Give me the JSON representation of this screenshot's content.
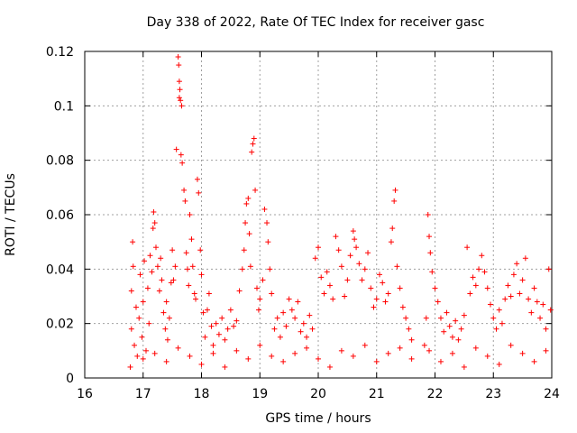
{
  "chart_data": {
    "type": "scatter",
    "title": "Day 338 of 2022, Rate Of TEC Index for receiver gasc",
    "xlabel": "GPS time / hours",
    "ylabel": "ROTI / TECUs",
    "xlim": [
      16,
      24
    ],
    "ylim": [
      0,
      0.12
    ],
    "xticks": [
      16,
      17,
      18,
      19,
      20,
      21,
      22,
      23,
      24
    ],
    "yticks": [
      0,
      0.02,
      0.04,
      0.06,
      0.08,
      0.1,
      0.12
    ],
    "xtick_labels": [
      "16",
      "17",
      "18",
      "19",
      "20",
      "21",
      "22",
      "23",
      "24"
    ],
    "ytick_labels": [
      "0",
      "0.02",
      "0.04",
      "0.06",
      "0.08",
      "0.1",
      "0.12"
    ],
    "grid": true,
    "marker": "+",
    "color": "#ff0000",
    "series": [
      {
        "name": "ROTI",
        "points": [
          [
            16.78,
            0.004
          ],
          [
            16.8,
            0.018
          ],
          [
            16.8,
            0.032
          ],
          [
            16.82,
            0.05
          ],
          [
            16.83,
            0.041
          ],
          [
            16.85,
            0.012
          ],
          [
            16.88,
            0.026
          ],
          [
            16.9,
            0.008
          ],
          [
            16.93,
            0.022
          ],
          [
            16.95,
            0.038
          ],
          [
            16.98,
            0.015
          ],
          [
            17.0,
            0.028
          ],
          [
            17.02,
            0.043
          ],
          [
            17.05,
            0.01
          ],
          [
            17.08,
            0.033
          ],
          [
            17.1,
            0.02
          ],
          [
            17.12,
            0.045
          ],
          [
            17.15,
            0.039
          ],
          [
            17.17,
            0.055
          ],
          [
            17.18,
            0.061
          ],
          [
            17.2,
            0.057
          ],
          [
            17.22,
            0.048
          ],
          [
            17.25,
            0.041
          ],
          [
            17.28,
            0.032
          ],
          [
            17.3,
            0.044
          ],
          [
            17.32,
            0.036
          ],
          [
            17.35,
            0.024
          ],
          [
            17.38,
            0.018
          ],
          [
            17.4,
            0.028
          ],
          [
            17.42,
            0.014
          ],
          [
            17.45,
            0.022
          ],
          [
            17.48,
            0.035
          ],
          [
            17.5,
            0.047
          ],
          [
            17.52,
            0.036
          ],
          [
            17.55,
            0.041
          ],
          [
            17.57,
            0.084
          ],
          [
            17.6,
            0.118
          ],
          [
            17.61,
            0.115
          ],
          [
            17.62,
            0.109
          ],
          [
            17.63,
            0.106
          ],
          [
            17.62,
            0.103
          ],
          [
            17.64,
            0.102
          ],
          [
            17.66,
            0.1
          ],
          [
            17.65,
            0.082
          ],
          [
            17.67,
            0.079
          ],
          [
            17.7,
            0.069
          ],
          [
            17.72,
            0.065
          ],
          [
            17.74,
            0.046
          ],
          [
            17.76,
            0.04
          ],
          [
            17.78,
            0.034
          ],
          [
            17.8,
            0.06
          ],
          [
            17.83,
            0.051
          ],
          [
            17.85,
            0.041
          ],
          [
            17.88,
            0.031
          ],
          [
            17.9,
            0.029
          ],
          [
            17.93,
            0.073
          ],
          [
            17.95,
            0.068
          ],
          [
            17.98,
            0.047
          ],
          [
            18.0,
            0.038
          ],
          [
            18.03,
            0.024
          ],
          [
            18.06,
            0.015
          ],
          [
            18.1,
            0.025
          ],
          [
            18.13,
            0.031
          ],
          [
            18.17,
            0.019
          ],
          [
            18.2,
            0.012
          ],
          [
            18.25,
            0.02
          ],
          [
            18.3,
            0.016
          ],
          [
            18.35,
            0.022
          ],
          [
            18.4,
            0.014
          ],
          [
            18.45,
            0.018
          ],
          [
            18.5,
            0.025
          ],
          [
            18.55,
            0.019
          ],
          [
            18.6,
            0.021
          ],
          [
            18.65,
            0.032
          ],
          [
            18.7,
            0.04
          ],
          [
            18.73,
            0.047
          ],
          [
            18.75,
            0.057
          ],
          [
            18.77,
            0.064
          ],
          [
            18.8,
            0.066
          ],
          [
            18.82,
            0.053
          ],
          [
            18.84,
            0.041
          ],
          [
            18.86,
            0.083
          ],
          [
            18.88,
            0.086
          ],
          [
            18.9,
            0.088
          ],
          [
            18.92,
            0.069
          ],
          [
            18.95,
            0.033
          ],
          [
            18.98,
            0.025
          ],
          [
            19.0,
            0.029
          ],
          [
            19.05,
            0.036
          ],
          [
            19.08,
            0.062
          ],
          [
            19.12,
            0.057
          ],
          [
            19.14,
            0.05
          ],
          [
            19.17,
            0.04
          ],
          [
            19.2,
            0.031
          ],
          [
            19.25,
            0.018
          ],
          [
            19.3,
            0.022
          ],
          [
            19.35,
            0.015
          ],
          [
            19.4,
            0.024
          ],
          [
            19.45,
            0.019
          ],
          [
            19.5,
            0.029
          ],
          [
            19.55,
            0.025
          ],
          [
            19.6,
            0.022
          ],
          [
            19.65,
            0.028
          ],
          [
            19.7,
            0.017
          ],
          [
            19.75,
            0.02
          ],
          [
            19.8,
            0.015
          ],
          [
            19.85,
            0.023
          ],
          [
            19.9,
            0.018
          ],
          [
            19.95,
            0.044
          ],
          [
            20.0,
            0.048
          ],
          [
            20.05,
            0.037
          ],
          [
            20.1,
            0.031
          ],
          [
            20.15,
            0.039
          ],
          [
            20.2,
            0.034
          ],
          [
            20.25,
            0.029
          ],
          [
            20.3,
            0.052
          ],
          [
            20.35,
            0.047
          ],
          [
            20.4,
            0.041
          ],
          [
            20.45,
            0.03
          ],
          [
            20.5,
            0.036
          ],
          [
            20.55,
            0.045
          ],
          [
            20.6,
            0.054
          ],
          [
            20.62,
            0.051
          ],
          [
            20.65,
            0.048
          ],
          [
            20.7,
            0.042
          ],
          [
            20.75,
            0.036
          ],
          [
            20.8,
            0.04
          ],
          [
            20.85,
            0.046
          ],
          [
            20.9,
            0.033
          ],
          [
            20.95,
            0.026
          ],
          [
            21.0,
            0.029
          ],
          [
            21.05,
            0.038
          ],
          [
            21.1,
            0.035
          ],
          [
            21.15,
            0.028
          ],
          [
            21.2,
            0.031
          ],
          [
            21.25,
            0.05
          ],
          [
            21.27,
            0.055
          ],
          [
            21.3,
            0.065
          ],
          [
            21.32,
            0.069
          ],
          [
            21.35,
            0.041
          ],
          [
            21.4,
            0.033
          ],
          [
            21.45,
            0.026
          ],
          [
            21.5,
            0.022
          ],
          [
            21.55,
            0.018
          ],
          [
            21.6,
            0.014
          ],
          [
            21.82,
            0.012
          ],
          [
            21.85,
            0.022
          ],
          [
            21.88,
            0.06
          ],
          [
            21.9,
            0.052
          ],
          [
            21.92,
            0.046
          ],
          [
            21.95,
            0.039
          ],
          [
            22.0,
            0.033
          ],
          [
            22.05,
            0.028
          ],
          [
            22.1,
            0.022
          ],
          [
            22.15,
            0.017
          ],
          [
            22.2,
            0.024
          ],
          [
            22.25,
            0.019
          ],
          [
            22.3,
            0.015
          ],
          [
            22.35,
            0.021
          ],
          [
            22.4,
            0.014
          ],
          [
            22.45,
            0.018
          ],
          [
            22.5,
            0.023
          ],
          [
            22.55,
            0.048
          ],
          [
            22.6,
            0.031
          ],
          [
            22.65,
            0.037
          ],
          [
            22.7,
            0.034
          ],
          [
            22.75,
            0.04
          ],
          [
            22.8,
            0.045
          ],
          [
            22.85,
            0.039
          ],
          [
            22.9,
            0.033
          ],
          [
            22.95,
            0.027
          ],
          [
            23.0,
            0.022
          ],
          [
            23.05,
            0.018
          ],
          [
            23.1,
            0.025
          ],
          [
            23.15,
            0.02
          ],
          [
            23.2,
            0.029
          ],
          [
            23.25,
            0.034
          ],
          [
            23.3,
            0.03
          ],
          [
            23.35,
            0.038
          ],
          [
            23.4,
            0.042
          ],
          [
            23.45,
            0.031
          ],
          [
            23.5,
            0.036
          ],
          [
            23.55,
            0.044
          ],
          [
            23.6,
            0.029
          ],
          [
            23.65,
            0.024
          ],
          [
            23.7,
            0.033
          ],
          [
            23.75,
            0.028
          ],
          [
            23.8,
            0.022
          ],
          [
            23.85,
            0.027
          ],
          [
            23.9,
            0.018
          ],
          [
            23.95,
            0.04
          ],
          [
            23.98,
            0.025
          ],
          [
            17.0,
            0.007
          ],
          [
            17.2,
            0.009
          ],
          [
            17.4,
            0.006
          ],
          [
            17.6,
            0.011
          ],
          [
            17.8,
            0.008
          ],
          [
            18.0,
            0.005
          ],
          [
            18.2,
            0.009
          ],
          [
            18.4,
            0.004
          ],
          [
            18.6,
            0.01
          ],
          [
            18.8,
            0.007
          ],
          [
            19.0,
            0.012
          ],
          [
            19.2,
            0.008
          ],
          [
            19.4,
            0.006
          ],
          [
            19.6,
            0.009
          ],
          [
            19.8,
            0.011
          ],
          [
            20.0,
            0.007
          ],
          [
            20.2,
            0.004
          ],
          [
            20.4,
            0.01
          ],
          [
            20.6,
            0.008
          ],
          [
            20.8,
            0.012
          ],
          [
            21.0,
            0.006
          ],
          [
            21.2,
            0.009
          ],
          [
            21.4,
            0.011
          ],
          [
            21.6,
            0.007
          ],
          [
            21.9,
            0.01
          ],
          [
            22.1,
            0.006
          ],
          [
            22.3,
            0.009
          ],
          [
            22.5,
            0.004
          ],
          [
            22.7,
            0.011
          ],
          [
            22.9,
            0.008
          ],
          [
            23.1,
            0.005
          ],
          [
            23.3,
            0.012
          ],
          [
            23.5,
            0.009
          ],
          [
            23.7,
            0.006
          ],
          [
            23.9,
            0.01
          ]
        ]
      }
    ]
  }
}
